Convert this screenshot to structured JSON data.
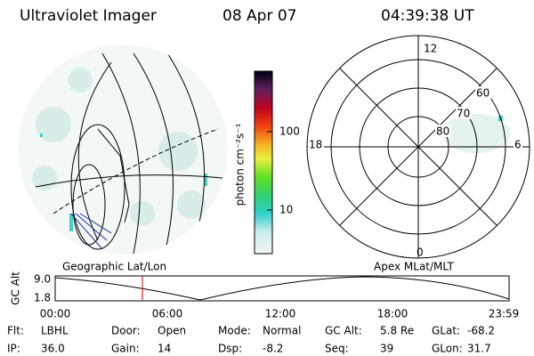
{
  "header": {
    "title": "Ultraviolet Imager",
    "date": "08 Apr 07",
    "time": "04:39:38 UT"
  },
  "colorbar": {
    "label": "photon cm⁻²s⁻¹",
    "ticks": [
      "100",
      "10"
    ]
  },
  "polar_plot": {
    "mlt_labels": {
      "top": "12",
      "left": "18",
      "right": "6",
      "bottom": "0"
    },
    "mlat_labels": [
      "60",
      "70",
      "80"
    ]
  },
  "timeline": {
    "left_title": "Geographic Lat/Lon",
    "right_title": "Apex MLat/MLT",
    "y_label": "GC Alt",
    "y_ticks": [
      "9.0",
      "1.8"
    ],
    "x_ticks": [
      "00:00",
      "06:00",
      "12:00",
      "18:00",
      "23:59"
    ]
  },
  "info": [
    [
      {
        "label": "Flt:",
        "value": "LBHL"
      },
      {
        "label": "Door:",
        "value": "Open"
      },
      {
        "label": "Mode:",
        "value": "Normal"
      },
      {
        "label": "GC Alt:",
        "value": "5.8 Re"
      },
      {
        "label": "GLat:",
        "value": "-68.2"
      }
    ],
    [
      {
        "label": "IP:",
        "value": "36.0"
      },
      {
        "label": "Gain:",
        "value": "14"
      },
      {
        "label": "Dsp:",
        "value": "-8.2"
      },
      {
        "label": "Seq:",
        "value": "39"
      },
      {
        "label": "GLon:",
        "value": "31.7"
      }
    ]
  ]
}
